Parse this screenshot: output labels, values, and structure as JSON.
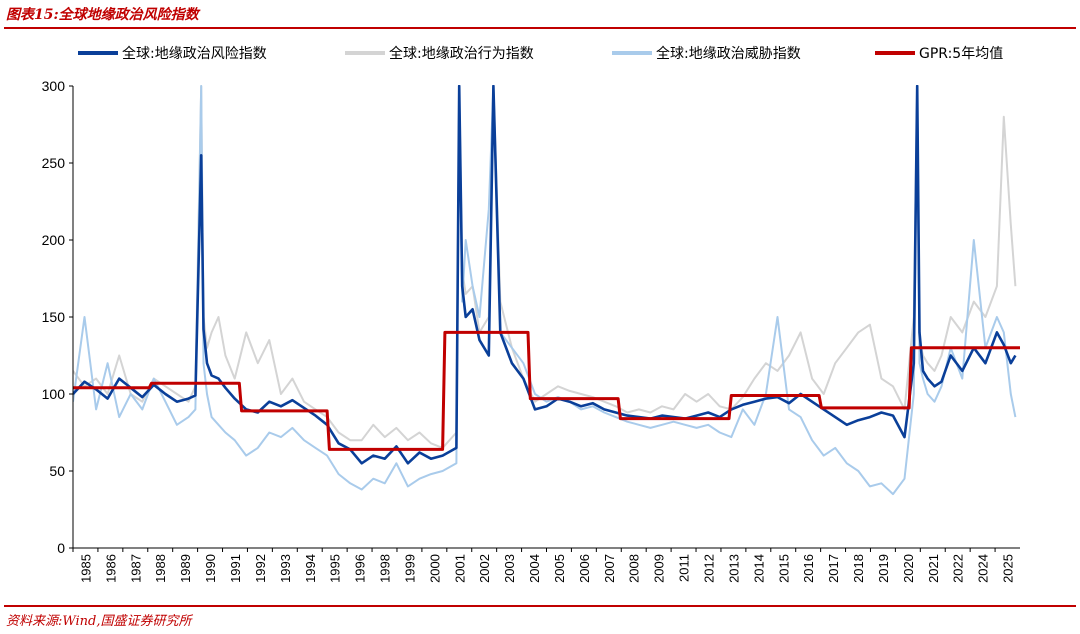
{
  "header": {
    "figure_title": "图表15:全球地缘政治风险指数"
  },
  "footer": {
    "source": "资料来源:Wind,国盛证券研究所"
  },
  "colors": {
    "rule": "#c00000",
    "risk": "#0a3f99",
    "act": "#d4d4d4",
    "threat": "#a9cbeb",
    "gpr5y": "#c00000"
  },
  "chart_data": {
    "type": "line",
    "title": "全球地缘政治风险指数",
    "xlabel": "",
    "ylabel": "",
    "ylim": [
      0,
      300
    ],
    "yticks": [
      0,
      50,
      100,
      150,
      200,
      250,
      300
    ],
    "x_tick_labels": [
      "1985",
      "1986",
      "1987",
      "1988",
      "1989",
      "1990",
      "1991",
      "1992",
      "1993",
      "1994",
      "1995",
      "1996",
      "1998",
      "1999",
      "2000",
      "2001",
      "2002",
      "2003",
      "2004",
      "2005",
      "2006",
      "2007",
      "2008",
      "2009",
      "2011",
      "2012",
      "2013",
      "2014",
      "2015",
      "2016",
      "2017",
      "2018",
      "2019",
      "2020",
      "2021",
      "2022",
      "2024",
      "2025"
    ],
    "legend_position": "top",
    "x_range": [
      1985.0,
      2026.0
    ],
    "series": [
      {
        "name": "全球:地缘政治风险指数",
        "key": "risk",
        "x": [
          1985.0,
          1985.5,
          1986.0,
          1986.5,
          1987.0,
          1987.5,
          1988.0,
          1988.5,
          1989.0,
          1989.5,
          1990.0,
          1990.3,
          1990.55,
          1990.65,
          1990.8,
          1991.0,
          1991.3,
          1991.6,
          1992.0,
          1992.5,
          1993.0,
          1993.5,
          1994.0,
          1994.5,
          1995.0,
          1995.5,
          1996.0,
          1996.5,
          1997.0,
          1997.5,
          1998.0,
          1998.5,
          1999.0,
          1999.5,
          2000.0,
          2000.5,
          2001.0,
          2001.6,
          2001.72,
          2001.85,
          2002.0,
          2002.3,
          2002.6,
          2003.0,
          2003.2,
          2003.5,
          2004.0,
          2004.5,
          2005.0,
          2005.5,
          2006.0,
          2006.5,
          2007.0,
          2007.5,
          2008.0,
          2008.5,
          2009.0,
          2009.5,
          2010.0,
          2010.5,
          2011.0,
          2011.5,
          2012.0,
          2012.5,
          2013.0,
          2013.5,
          2014.0,
          2014.5,
          2015.0,
          2015.5,
          2016.0,
          2016.5,
          2017.0,
          2017.5,
          2018.0,
          2018.5,
          2019.0,
          2019.5,
          2020.0,
          2020.5,
          2021.0,
          2021.4,
          2021.55,
          2021.65,
          2021.8,
          2022.0,
          2022.3,
          2022.6,
          2023.0,
          2023.5,
          2024.0,
          2024.5,
          2025.0,
          2025.3,
          2025.6,
          2025.8
        ],
        "values": [
          100,
          108,
          103,
          97,
          110,
          104,
          98,
          106,
          100,
          95,
          97,
          99,
          255,
          142,
          120,
          112,
          110,
          104,
          97,
          90,
          88,
          95,
          92,
          96,
          91,
          86,
          80,
          68,
          64,
          55,
          60,
          58,
          66,
          55,
          62,
          58,
          60,
          65,
          300,
          170,
          150,
          155,
          135,
          125,
          300,
          140,
          120,
          110,
          90,
          92,
          97,
          95,
          92,
          94,
          90,
          88,
          86,
          85,
          84,
          86,
          85,
          84,
          86,
          88,
          85,
          90,
          93,
          95,
          97,
          98,
          94,
          100,
          95,
          90,
          85,
          80,
          83,
          85,
          88,
          86,
          72,
          120,
          300,
          140,
          115,
          110,
          105,
          108,
          125,
          115,
          130,
          120,
          140,
          132,
          120,
          125
        ]
      },
      {
        "name": "全球:地缘政治行为指数",
        "key": "act",
        "x": [
          1985.0,
          1985.5,
          1986.0,
          1986.5,
          1987.0,
          1987.5,
          1988.0,
          1988.5,
          1989.0,
          1989.5,
          1990.0,
          1990.3,
          1990.55,
          1990.65,
          1990.8,
          1991.0,
          1991.3,
          1991.6,
          1992.0,
          1992.5,
          1993.0,
          1993.5,
          1994.0,
          1994.5,
          1995.0,
          1995.5,
          1996.0,
          1996.5,
          1997.0,
          1997.5,
          1998.0,
          1998.5,
          1999.0,
          1999.5,
          2000.0,
          2000.5,
          2001.0,
          2001.6,
          2001.72,
          2001.85,
          2002.0,
          2002.3,
          2002.6,
          2003.0,
          2003.2,
          2003.5,
          2004.0,
          2004.5,
          2005.0,
          2005.5,
          2006.0,
          2006.5,
          2007.0,
          2007.5,
          2008.0,
          2008.5,
          2009.0,
          2009.5,
          2010.0,
          2010.5,
          2011.0,
          2011.5,
          2012.0,
          2012.5,
          2013.0,
          2013.5,
          2014.0,
          2014.5,
          2015.0,
          2015.5,
          2016.0,
          2016.5,
          2017.0,
          2017.5,
          2018.0,
          2018.5,
          2019.0,
          2019.5,
          2020.0,
          2020.5,
          2021.0,
          2021.4,
          2021.55,
          2021.65,
          2021.8,
          2022.0,
          2022.3,
          2022.6,
          2023.0,
          2023.5,
          2024.0,
          2024.5,
          2025.0,
          2025.3,
          2025.6,
          2025.8
        ],
        "values": [
          115,
          105,
          110,
          100,
          125,
          100,
          95,
          110,
          105,
          100,
          95,
          105,
          300,
          150,
          130,
          140,
          150,
          125,
          110,
          140,
          120,
          135,
          100,
          110,
          95,
          90,
          85,
          75,
          70,
          70,
          80,
          72,
          78,
          70,
          75,
          68,
          65,
          75,
          300,
          180,
          165,
          170,
          140,
          150,
          300,
          160,
          130,
          110,
          95,
          100,
          105,
          102,
          100,
          98,
          95,
          92,
          88,
          90,
          88,
          92,
          90,
          100,
          95,
          100,
          92,
          90,
          98,
          110,
          120,
          115,
          125,
          140,
          110,
          100,
          120,
          130,
          140,
          145,
          110,
          105,
          90,
          150,
          300,
          135,
          125,
          120,
          115,
          125,
          150,
          140,
          160,
          150,
          170,
          280,
          210,
          170
        ]
      },
      {
        "name": "全球:地缘政治威胁指数",
        "key": "threat",
        "x": [
          1985.0,
          1985.5,
          1986.0,
          1986.5,
          1987.0,
          1987.5,
          1988.0,
          1988.5,
          1989.0,
          1989.5,
          1990.0,
          1990.3,
          1990.55,
          1990.65,
          1990.8,
          1991.0,
          1991.3,
          1991.6,
          1992.0,
          1992.5,
          1993.0,
          1993.5,
          1994.0,
          1994.5,
          1995.0,
          1995.5,
          1996.0,
          1996.5,
          1997.0,
          1997.5,
          1998.0,
          1998.5,
          1999.0,
          1999.5,
          2000.0,
          2000.5,
          2001.0,
          2001.6,
          2001.72,
          2001.85,
          2002.0,
          2002.3,
          2002.6,
          2003.0,
          2003.2,
          2003.5,
          2004.0,
          2004.5,
          2005.0,
          2005.5,
          2006.0,
          2006.5,
          2007.0,
          2007.5,
          2008.0,
          2008.5,
          2009.0,
          2009.5,
          2010.0,
          2010.5,
          2011.0,
          2011.5,
          2012.0,
          2012.5,
          2013.0,
          2013.5,
          2014.0,
          2014.5,
          2015.0,
          2015.5,
          2016.0,
          2016.5,
          2017.0,
          2017.5,
          2018.0,
          2018.5,
          2019.0,
          2019.5,
          2020.0,
          2020.5,
          2021.0,
          2021.4,
          2021.55,
          2021.65,
          2021.8,
          2022.0,
          2022.3,
          2022.6,
          2023.0,
          2023.5,
          2024.0,
          2024.5,
          2025.0,
          2025.3,
          2025.6,
          2025.8
        ],
        "values": [
          95,
          150,
          90,
          120,
          85,
          100,
          90,
          110,
          95,
          80,
          85,
          90,
          300,
          120,
          100,
          85,
          80,
          75,
          70,
          60,
          65,
          75,
          72,
          78,
          70,
          65,
          60,
          48,
          42,
          38,
          45,
          42,
          55,
          40,
          45,
          48,
          50,
          55,
          300,
          160,
          200,
          170,
          150,
          220,
          300,
          140,
          130,
          120,
          100,
          95,
          98,
          95,
          90,
          92,
          88,
          85,
          82,
          80,
          78,
          80,
          82,
          80,
          78,
          80,
          75,
          72,
          90,
          80,
          100,
          150,
          90,
          85,
          70,
          60,
          65,
          55,
          50,
          40,
          42,
          35,
          45,
          100,
          300,
          120,
          110,
          100,
          95,
          105,
          130,
          110,
          200,
          130,
          150,
          140,
          100,
          85
        ]
      },
      {
        "name": "GPR:5年均值",
        "key": "gpr5y",
        "x": [
          1985.0,
          1988.3,
          1988.4,
          1992.2,
          1992.3,
          1996.0,
          1996.1,
          2001.0,
          2001.1,
          2004.7,
          2004.8,
          2008.6,
          2008.7,
          2013.4,
          2013.5,
          2017.3,
          2017.4,
          2021.2,
          2021.3,
          2026.0
        ],
        "values": [
          104,
          104,
          107,
          107,
          89,
          89,
          64,
          64,
          140,
          140,
          97,
          97,
          84,
          84,
          99,
          99,
          91,
          91,
          130,
          130
        ]
      }
    ]
  }
}
